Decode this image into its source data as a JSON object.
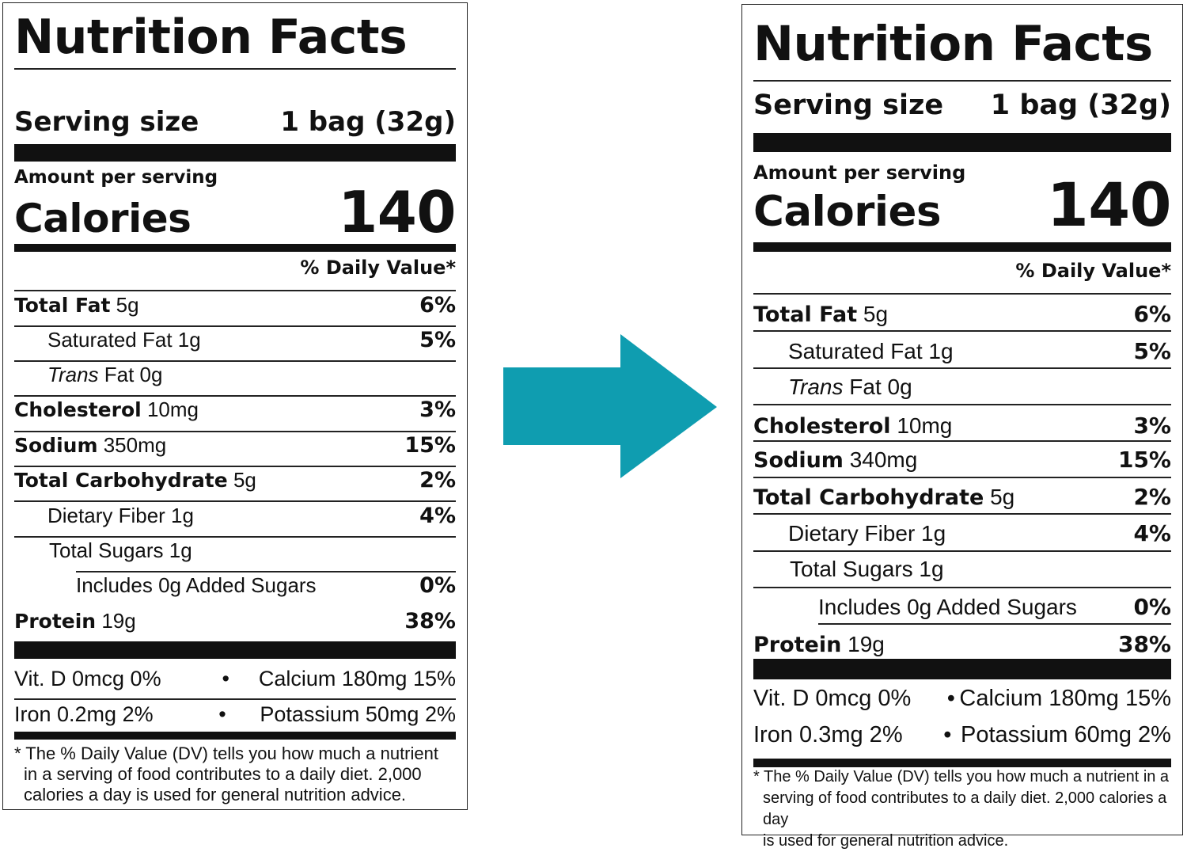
{
  "arrow": {
    "color": "#0f9db0",
    "icon": "right-arrow-icon"
  },
  "labels": [
    {
      "title": "Nutrition Facts",
      "serving_label": "Serving size",
      "serving_value": "1 bag (32g)",
      "amount_per_serving": "Amount per serving",
      "calories_label": "Calories",
      "calories_value": "140",
      "daily_value_header": "% Daily Value*",
      "nutrients": [
        {
          "name": "Total Fat",
          "amount": "5g",
          "dv": "6%"
        },
        {
          "name": "Saturated Fat",
          "amount": "1g",
          "dv": "5%"
        },
        {
          "name_italic": "Trans",
          "name": "Fat",
          "amount": "0g",
          "dv": ""
        },
        {
          "name": "Cholesterol",
          "amount": "10mg",
          "dv": "3%"
        },
        {
          "name": "Sodium",
          "amount": "350mg",
          "dv": "15%"
        },
        {
          "name": "Total Carbohydrate",
          "amount": "5g",
          "dv": "2%"
        },
        {
          "name": "Dietary Fiber",
          "amount": "1g",
          "dv": "4%"
        },
        {
          "name": "Total Sugars",
          "amount": "1g",
          "dv": ""
        },
        {
          "name": "Includes 0g Added Sugars",
          "amount": "",
          "dv": "0%"
        },
        {
          "name": "Protein",
          "amount": "19g",
          "dv": "38%"
        }
      ],
      "vitamins": [
        {
          "left": "Vit. D 0mcg 0%",
          "bullet": "•",
          "right": "Calcium 180mg 15%"
        },
        {
          "left": "Iron 0.2mg 2%",
          "bullet": "•",
          "right": "Potassium 50mg 2%"
        }
      ],
      "footnote": [
        "* The % Daily Value (DV) tells you how much a nutrient",
        "in a serving of food contributes to a daily diet. 2,000",
        "calories a day is used for general nutrition advice."
      ]
    },
    {
      "title": "Nutrition Facts",
      "serving_label": "Serving size",
      "serving_value": "1 bag (32g)",
      "amount_per_serving": "Amount per serving",
      "calories_label": "Calories",
      "calories_value": "140",
      "daily_value_header": "% Daily Value*",
      "nutrients": [
        {
          "name": "Total Fat",
          "amount": "5g",
          "dv": "6%"
        },
        {
          "name": "Saturated Fat",
          "amount": "1g",
          "dv": "5%"
        },
        {
          "name_italic": "Trans",
          "name": "Fat",
          "amount": "0g",
          "dv": ""
        },
        {
          "name": "Cholesterol",
          "amount": "10mg",
          "dv": "3%"
        },
        {
          "name": "Sodium",
          "amount": "340mg",
          "dv": "15%"
        },
        {
          "name": "Total Carbohydrate",
          "amount": "5g",
          "dv": "2%"
        },
        {
          "name": "Dietary Fiber",
          "amount": "1g",
          "dv": "4%"
        },
        {
          "name": "Total Sugars",
          "amount": "1g",
          "dv": ""
        },
        {
          "name": "Includes 0g Added Sugars",
          "amount": "",
          "dv": "0%"
        },
        {
          "name": "Protein",
          "amount": "19g",
          "dv": "38%"
        }
      ],
      "vitamins": [
        {
          "left": "Vit. D 0mcg 0%",
          "bullet": "•",
          "right": "Calcium 180mg 15%"
        },
        {
          "left": "Iron 0.3mg 2%",
          "bullet": "•",
          "right": "Potassium 60mg 2%"
        }
      ],
      "footnote": [
        "* The % Daily Value (DV) tells you how much a nutrient in a",
        "serving of food contributes to a daily diet. 2,000 calories a day",
        "is used for general nutrition advice."
      ]
    }
  ]
}
